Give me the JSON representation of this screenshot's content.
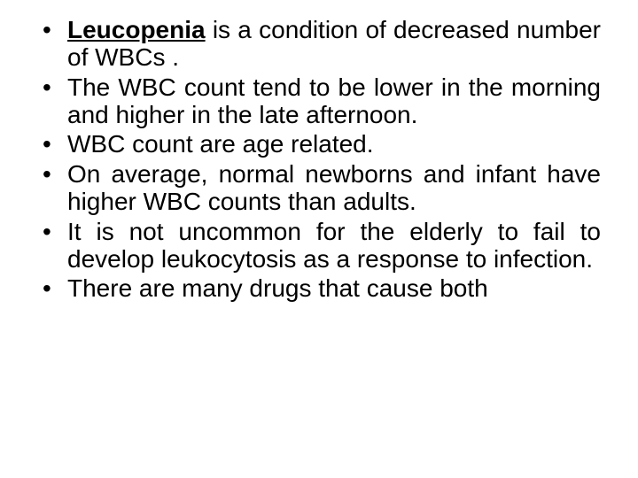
{
  "slide": {
    "background_color": "#ffffff",
    "text_color": "#000000",
    "font_family": "Arial, Helvetica, sans-serif",
    "font_size_pt": 21,
    "bullets": [
      {
        "lead_bold_underline": "Leucopenia",
        "rest": " is a condition of decreased number of WBCs ."
      },
      {
        "rest": "The WBC count tend to be lower in the morning and higher in the late afternoon."
      },
      {
        "rest": "WBC count are age related."
      },
      {
        "rest": "On average, normal newborns and infant have higher WBC counts than adults."
      },
      {
        "rest": "It is not uncommon  for the elderly to fail to develop leukocytosis as a response to infection."
      },
      {
        "rest": "There are many drugs that cause both"
      }
    ]
  }
}
